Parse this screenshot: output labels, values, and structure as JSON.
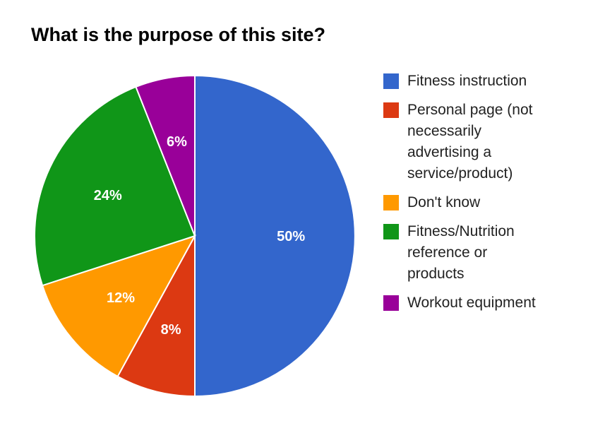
{
  "chart_data": {
    "type": "pie",
    "title": "What is the purpose of this site?",
    "categories": [
      "Fitness instruction",
      "Personal page (not\nnecessarily\nadvertising a\nservice/product)",
      "Don't know",
      "Fitness/Nutrition\nreference or\nproducts",
      "Workout equipment"
    ],
    "values": [
      50,
      8,
      12,
      24,
      6
    ],
    "labels": [
      "50%",
      "8%",
      "12%",
      "24%",
      "6%"
    ],
    "colors": [
      "#3366cc",
      "#dc3912",
      "#ff9900",
      "#109618",
      "#990099"
    ],
    "legend_position": "right"
  }
}
